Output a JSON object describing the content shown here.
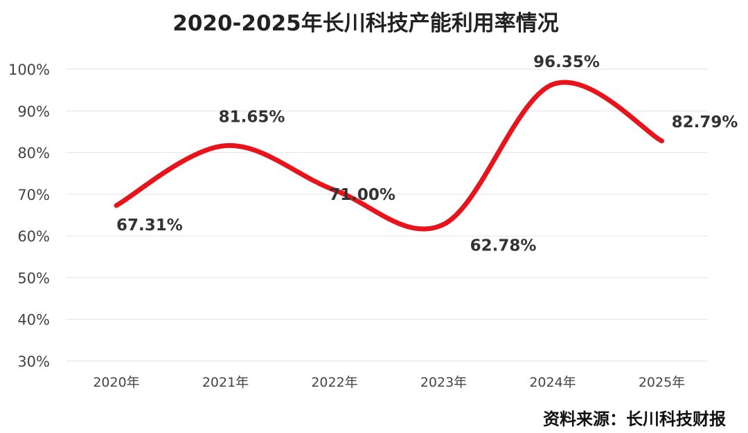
{
  "chart_data": {
    "type": "line",
    "title": "2020-2025年长川科技产能利用率情况",
    "categories": [
      "2020年",
      "2021年",
      "2022年",
      "2023年",
      "2024年",
      "2025年"
    ],
    "series": [
      {
        "values": [
          67.31,
          81.65,
          71.0,
          62.78,
          96.35,
          82.79
        ],
        "data_labels": [
          "67.31%",
          "81.65%",
          "71.00%",
          "62.78%",
          "96.35%",
          "82.79%"
        ],
        "color": "#e8141c"
      }
    ],
    "ylim": [
      30,
      100
    ],
    "yticks": [
      30,
      40,
      50,
      60,
      70,
      80,
      90,
      100
    ],
    "ytick_labels": [
      "30%",
      "40%",
      "50%",
      "60%",
      "70%",
      "80%",
      "90%",
      "100%"
    ],
    "xlabel": "",
    "ylabel": "",
    "grid": true,
    "highlight_label_color": "#c0141c",
    "label_color": "#333333"
  },
  "source": "资料来源：长川科技财报"
}
